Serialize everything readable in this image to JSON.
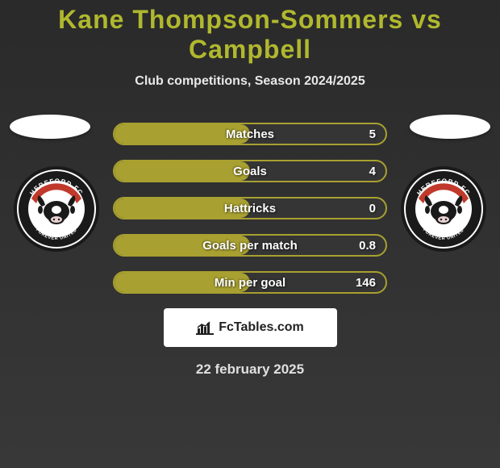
{
  "title": "Kane Thompson-Sommers vs Campbell",
  "subtitle": "Club competitions, Season 2024/2025",
  "player_left": {
    "name": "Kane Thompson-Sommers"
  },
  "player_right": {
    "name": "Campbell"
  },
  "club": {
    "top_text": "HEREFORD FC",
    "bottom_text": "FOREVER UNITED",
    "year": "2015",
    "bg": "#ffffff",
    "accent": "#c0392b",
    "border": "#1a1a1a"
  },
  "stats": [
    {
      "label": "Matches",
      "left_val": "",
      "right_val": "5",
      "left_fill": 50,
      "right_fill": 50
    },
    {
      "label": "Goals",
      "left_val": "",
      "right_val": "4",
      "left_fill": 50,
      "right_fill": 50
    },
    {
      "label": "Hattricks",
      "left_val": "",
      "right_val": "0",
      "left_fill": 50,
      "right_fill": 50
    },
    {
      "label": "Goals per match",
      "left_val": "",
      "right_val": "0.8",
      "left_fill": 50,
      "right_fill": 50
    },
    {
      "label": "Min per goal",
      "left_val": "",
      "right_val": "146",
      "left_fill": 50,
      "right_fill": 50
    }
  ],
  "brand": "FcTables.com",
  "date": "22 february 2025",
  "palette": {
    "bar_border": "#a8a030",
    "bar_fill": "#a8a030",
    "bar_bg": "#353535",
    "title_color": "#b0b82e",
    "text": "#ffffff"
  }
}
